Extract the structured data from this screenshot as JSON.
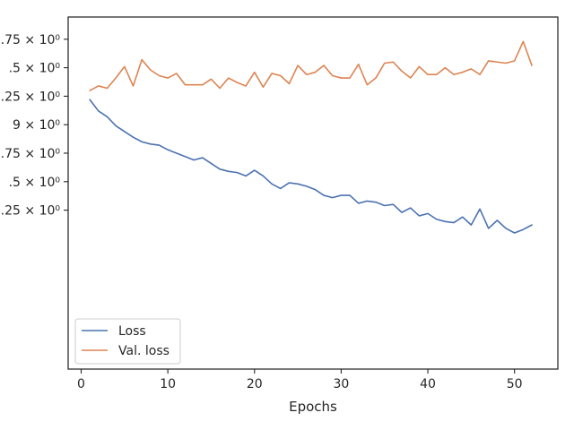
{
  "chart_data": {
    "type": "line",
    "title": "",
    "xlabel": "Epochs",
    "ylabel": "",
    "grid": false,
    "legend_position": "lower-left",
    "xlim": [
      -1.5,
      55
    ],
    "ylim": [
      1.1855,
      1.4945
    ],
    "xticks": [
      {
        "value": 0,
        "label": "0"
      },
      {
        "value": 10,
        "label": "10"
      },
      {
        "value": 20,
        "label": "20"
      },
      {
        "value": 30,
        "label": "30"
      },
      {
        "value": 40,
        "label": "40"
      },
      {
        "value": 50,
        "label": "50"
      }
    ],
    "yticks": [
      {
        "value": 1.475,
        "label": ".75 × 10⁰"
      },
      {
        "value": 1.45,
        "label": ".5 × 10⁰"
      },
      {
        "value": 1.425,
        "label": ".25 × 10⁰"
      },
      {
        "value": 1.4,
        "label": "9 × 10⁰"
      },
      {
        "value": 1.375,
        "label": ".75 × 10⁰"
      },
      {
        "value": 1.35,
        "label": ".5 × 10⁰"
      },
      {
        "value": 1.325,
        "label": ".25 × 10⁰"
      }
    ],
    "series": [
      {
        "name": "Loss",
        "color": "#4c72b0",
        "x": [
          1,
          2,
          3,
          4,
          5,
          6,
          7,
          8,
          9,
          10,
          11,
          12,
          13,
          14,
          15,
          16,
          17,
          18,
          19,
          20,
          21,
          22,
          23,
          24,
          25,
          26,
          27,
          28,
          29,
          30,
          31,
          32,
          33,
          34,
          35,
          36,
          37,
          38,
          39,
          40,
          41,
          42,
          43,
          44,
          45,
          46,
          47,
          48,
          49,
          50,
          51,
          52
        ],
        "values": [
          1.422,
          1.412,
          1.407,
          1.399,
          1.394,
          1.389,
          1.385,
          1.383,
          1.382,
          1.378,
          1.375,
          1.372,
          1.369,
          1.371,
          1.366,
          1.361,
          1.359,
          1.358,
          1.355,
          1.36,
          1.355,
          1.348,
          1.344,
          1.349,
          1.348,
          1.346,
          1.343,
          1.338,
          1.336,
          1.338,
          1.338,
          1.331,
          1.333,
          1.332,
          1.329,
          1.33,
          1.323,
          1.327,
          1.32,
          1.322,
          1.317,
          1.315,
          1.314,
          1.319,
          1.312,
          1.326,
          1.309,
          1.316,
          1.309,
          1.305,
          1.308,
          1.312
        ]
      },
      {
        "name": "Val. loss",
        "color": "#dd8452",
        "x": [
          1,
          2,
          3,
          4,
          5,
          6,
          7,
          8,
          9,
          10,
          11,
          12,
          13,
          14,
          15,
          16,
          17,
          18,
          19,
          20,
          21,
          22,
          23,
          24,
          25,
          26,
          27,
          28,
          29,
          30,
          31,
          32,
          33,
          34,
          35,
          36,
          37,
          38,
          39,
          40,
          41,
          42,
          43,
          44,
          45,
          46,
          47,
          48,
          49,
          50,
          51,
          52
        ],
        "values": [
          1.43,
          1.434,
          1.432,
          1.441,
          1.451,
          1.434,
          1.457,
          1.448,
          1.443,
          1.441,
          1.445,
          1.435,
          1.435,
          1.435,
          1.44,
          1.432,
          1.441,
          1.437,
          1.434,
          1.446,
          1.433,
          1.445,
          1.443,
          1.436,
          1.452,
          1.444,
          1.446,
          1.452,
          1.443,
          1.441,
          1.441,
          1.453,
          1.435,
          1.441,
          1.454,
          1.455,
          1.447,
          1.441,
          1.451,
          1.444,
          1.444,
          1.45,
          1.444,
          1.446,
          1.449,
          1.444,
          1.456,
          1.455,
          1.454,
          1.456,
          1.473,
          1.452
        ]
      }
    ]
  }
}
